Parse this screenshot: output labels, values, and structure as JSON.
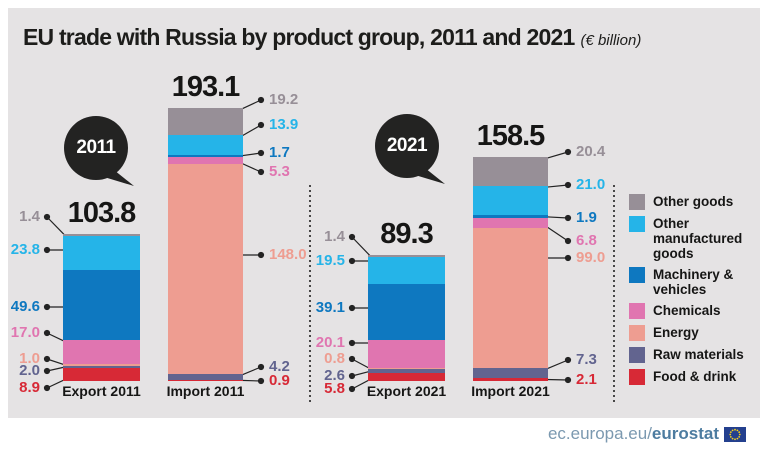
{
  "title": {
    "text": "EU trade with Russia by product group, 2011 and 2021",
    "unit": "(€ billion)"
  },
  "year_bubbles": {
    "left": "2011",
    "right": "2021"
  },
  "footer": {
    "url_prefix": "ec.europa.eu/",
    "url_bold": "eurostat",
    "flag_icon": "eu-flag"
  },
  "colors": {
    "panel_bg": "#e5e3e4",
    "bubble": "#232322",
    "leader": "#232323",
    "other_goods": "#978f97",
    "other_manufactured_goods": "#25b4e8",
    "machinery_vehicles": "#0e78c0",
    "chemicals": "#e075b0",
    "energy": "#ee9d91",
    "raw_materials": "#62648f",
    "food_drink": "#d72936"
  },
  "legend": {
    "items": [
      {
        "label": "Other goods",
        "color": "#978f97"
      },
      {
        "label": "Other manufactured goods",
        "color": "#25b4e8"
      },
      {
        "label": "Machinery & vehicles",
        "color": "#0e78c0"
      },
      {
        "label": "Chemicals",
        "color": "#e075b0"
      },
      {
        "label": "Energy",
        "color": "#ee9d91"
      },
      {
        "label": "Raw materials",
        "color": "#62648f"
      },
      {
        "label": "Food & drink",
        "color": "#d72936"
      }
    ]
  },
  "chart_data": {
    "type": "bar",
    "stacked": true,
    "title": "EU trade with Russia by product group, 2011 and 2021",
    "unit": "€ billion",
    "legend_position": "right",
    "grid": false,
    "categories": [
      "Export 2011",
      "Import 2011",
      "Export 2021",
      "Import 2021"
    ],
    "totals": [
      "103.8",
      "193.1",
      "89.3",
      "158.5"
    ],
    "series": [
      {
        "name": "Other goods",
        "color": "#978f97",
        "values": [
          1.4,
          19.2,
          1.4,
          20.4
        ]
      },
      {
        "name": "Other manufactured goods",
        "color": "#25b4e8",
        "values": [
          23.8,
          13.9,
          19.5,
          21.0
        ]
      },
      {
        "name": "Machinery & vehicles",
        "color": "#0e78c0",
        "values": [
          49.6,
          1.7,
          39.1,
          1.9
        ]
      },
      {
        "name": "Chemicals",
        "color": "#e075b0",
        "values": [
          17.0,
          5.3,
          20.1,
          6.8
        ]
      },
      {
        "name": "Energy",
        "color": "#ee9d91",
        "values": [
          1.0,
          148.0,
          0.8,
          99.0
        ]
      },
      {
        "name": "Raw materials",
        "color": "#62648f",
        "values": [
          2.0,
          4.2,
          2.6,
          7.3
        ]
      },
      {
        "name": "Food & drink",
        "color": "#d72936",
        "values": [
          8.9,
          0.9,
          5.8,
          2.1
        ]
      }
    ],
    "value_labels": [
      [
        "1.4",
        "23.8",
        "49.6",
        "17.0",
        "1.0",
        "2.0",
        "8.9"
      ],
      [
        "19.2",
        "13.9",
        "1.7",
        "5.3",
        "148.0",
        "4.2",
        "0.9"
      ],
      [
        "1.4",
        "19.5",
        "39.1",
        "20.1",
        "0.8",
        "2.6",
        "5.8"
      ],
      [
        "20.4",
        "21.0",
        "1.9",
        "6.8",
        "99.0",
        "7.3",
        "2.1"
      ]
    ]
  }
}
